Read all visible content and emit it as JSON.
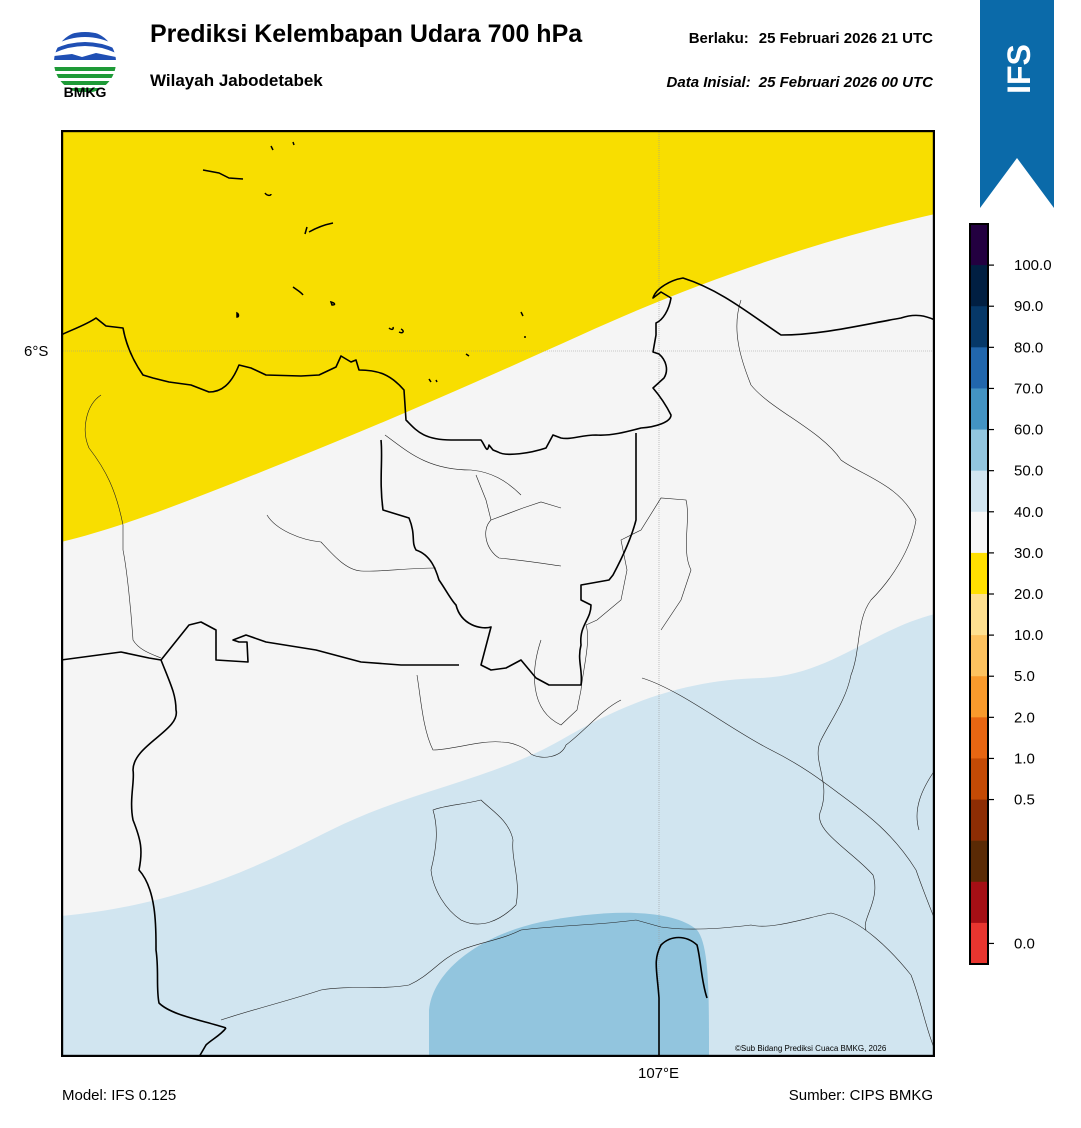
{
  "header": {
    "logo_text": "BMKG",
    "title": "Prediksi Kelembapan Udara 700 hPa",
    "subtitle": "Wilayah Jabodetabek",
    "valid_label": "Berlaku:",
    "valid_time": "25 Februari 2026 21 UTC",
    "init_label": "Data Inisial:",
    "init_time": "25 Februari 2026 00 UTC"
  },
  "ribbon": {
    "text": "IFS",
    "color": "#0b6aa9"
  },
  "map": {
    "lat_label": "6°S",
    "lon_label": "107°E",
    "credit": "©Sub Bidang Prediksi Cuaca BMKG, 2026",
    "field_colors": {
      "yellow_30_40": "#f8de00",
      "white_40_50": "#f5f5f5",
      "light_blue_50_60": "#d1e5f0",
      "blue_60_70": "#92c5de"
    }
  },
  "colorbar": {
    "labels": [
      "100.0",
      "90.0",
      "80.0",
      "70.0",
      "60.0",
      "50.0",
      "40.0",
      "30.0",
      "20.0",
      "10.0",
      "5.0",
      "2.0",
      "1.0",
      "0.5",
      "0.0"
    ],
    "colors": [
      "#230040",
      "#011f42",
      "#063868",
      "#2166ac",
      "#4393c3",
      "#92c5de",
      "#d1e5f0",
      "#f7f7f7",
      "#ffe000",
      "#fee090",
      "#fdc25f",
      "#f99a2c",
      "#e86612",
      "#c44a05",
      "#8d2d04",
      "#5a2a05",
      "#a50f15",
      "#e8352f"
    ]
  },
  "footer": {
    "model": "Model: IFS 0.125",
    "source": "Sumber: CIPS BMKG"
  }
}
